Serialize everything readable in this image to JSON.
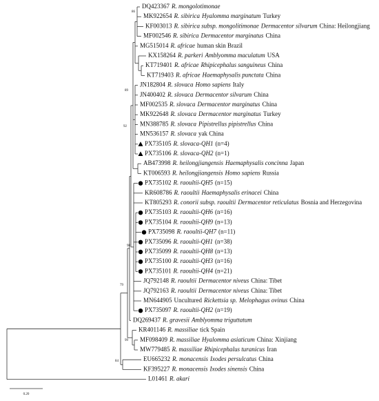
{
  "leaves": [
    {
      "id": "DQ423367",
      "parts": [
        {
          "t": "R. mongolotimonae",
          "i": true
        }
      ]
    },
    {
      "id": "MK922654",
      "parts": [
        {
          "t": "R. sibirica",
          "i": true
        },
        {
          "t": "Hyalomma marginatum",
          "i": true
        },
        {
          "t": "Turkey",
          "i": false
        }
      ]
    },
    {
      "id": "KF003013",
      "parts": [
        {
          "t": "R. sibirica subsp. mongolitimonae",
          "i": true
        },
        {
          "t": "Dermacentor silvarum",
          "i": true
        },
        {
          "t": "China: Heilongjiang",
          "i": false
        }
      ]
    },
    {
      "id": "MF002546",
      "parts": [
        {
          "t": "R. sibirica",
          "i": true
        },
        {
          "t": "Dermacentor marginatus",
          "i": true
        },
        {
          "t": "China",
          "i": false
        }
      ]
    },
    {
      "id": "MG515014",
      "parts": [
        {
          "t": "R. africae",
          "i": true
        },
        {
          "t": "human skin Brazil",
          "i": false
        }
      ]
    },
    {
      "id": "KX158264",
      "parts": [
        {
          "t": "R. parkeri",
          "i": true
        },
        {
          "t": "Amblyomma maculatum",
          "i": true
        },
        {
          "t": "USA",
          "i": false
        }
      ]
    },
    {
      "id": "KT719401",
      "parts": [
        {
          "t": "R. africae",
          "i": true
        },
        {
          "t": "Rhipicephalus sanguineus",
          "i": true
        },
        {
          "t": "China",
          "i": false
        }
      ]
    },
    {
      "id": "KT719403",
      "parts": [
        {
          "t": "R. africae",
          "i": true
        },
        {
          "t": "Haemaphysalis punctata",
          "i": true
        },
        {
          "t": "China",
          "i": false
        }
      ]
    },
    {
      "id": "JN182804",
      "parts": [
        {
          "t": "R. slovaca",
          "i": true
        },
        {
          "t": "Homo sapiens",
          "i": true
        },
        {
          "t": "Italy",
          "i": false
        }
      ]
    },
    {
      "id": "JN400402",
      "parts": [
        {
          "t": "R. slovaca",
          "i": true
        },
        {
          "t": "Dermacentor silvarum",
          "i": true
        },
        {
          "t": "China",
          "i": false
        }
      ]
    },
    {
      "id": "MF002535",
      "parts": [
        {
          "t": "R. slovaca",
          "i": true
        },
        {
          "t": "Dermacentor marginatus",
          "i": true
        },
        {
          "t": "China",
          "i": false
        }
      ]
    },
    {
      "id": "MK922648",
      "parts": [
        {
          "t": "R. slovaca",
          "i": true
        },
        {
          "t": "Dermacentor marginatus",
          "i": true
        },
        {
          "t": "Turkey",
          "i": false
        }
      ]
    },
    {
      "id": "MN388785",
      "parts": [
        {
          "t": "R. slovaca",
          "i": true
        },
        {
          "t": "Pipistrellus pipistrellus",
          "i": true
        },
        {
          "t": "China",
          "i": false
        }
      ]
    },
    {
      "id": "MN536157",
      "parts": [
        {
          "t": "R. slovaca",
          "i": true
        },
        {
          "t": "yak China",
          "i": false
        }
      ]
    },
    {
      "id": "PX735105",
      "marker": "triangle",
      "parts": [
        {
          "t": "R. slovaca-QH1",
          "i": true
        },
        {
          "t": "(n=4)",
          "i": false
        }
      ]
    },
    {
      "id": "PX735106",
      "marker": "triangle",
      "parts": [
        {
          "t": "R. slovaca-QH2",
          "i": true
        },
        {
          "t": "(n=1)",
          "i": false
        }
      ]
    },
    {
      "id": "AB473998",
      "parts": [
        {
          "t": "R. heilongjiangensis",
          "i": true
        },
        {
          "t": "Haemaphysalis concinna",
          "i": true
        },
        {
          "t": "Japan",
          "i": false
        }
      ]
    },
    {
      "id": "KT006593",
      "parts": [
        {
          "t": "R. heilongjiangensis",
          "i": true
        },
        {
          "t": "Homo sapiens",
          "i": true
        },
        {
          "t": "Russia",
          "i": false
        }
      ]
    },
    {
      "id": "PX735102",
      "marker": "circle",
      "parts": [
        {
          "t": "R. raoultii-QH5",
          "i": true
        },
        {
          "t": "(n=15)",
          "i": false
        }
      ]
    },
    {
      "id": "KR608786",
      "parts": [
        {
          "t": "R. raoultii",
          "i": true
        },
        {
          "t": "Haemaphysalis erinacei",
          "i": true
        },
        {
          "t": "China",
          "i": false
        }
      ]
    },
    {
      "id": "KT805293",
      "parts": [
        {
          "t": "R. conorii subsp. raoultii",
          "i": true
        },
        {
          "t": "Dermacentor reticulatus",
          "i": true
        },
        {
          "t": "Bosnia and Herzegovina",
          "i": false
        }
      ]
    },
    {
      "id": "PX735103",
      "marker": "circle",
      "parts": [
        {
          "t": "R. raoultii-QH6",
          "i": true
        },
        {
          "t": "(n=16)",
          "i": false
        }
      ]
    },
    {
      "id": "PX735104",
      "marker": "circle",
      "parts": [
        {
          "t": "R. raoultii-QH9",
          "i": true
        },
        {
          "t": "(n=13)",
          "i": false
        }
      ]
    },
    {
      "id": "PX735098",
      "marker": "circle",
      "parts": [
        {
          "t": "R. raoultii-QH7",
          "i": true
        },
        {
          "t": "(n=11)",
          "i": false
        }
      ]
    },
    {
      "id": "PX735096",
      "marker": "circle",
      "parts": [
        {
          "t": "R. raoultii-QH1",
          "i": true
        },
        {
          "t": "(n=38)",
          "i": false
        }
      ]
    },
    {
      "id": "PX735099",
      "marker": "circle",
      "parts": [
        {
          "t": "R. raoultii-QH8",
          "i": true
        },
        {
          "t": "(n=13)",
          "i": false
        }
      ]
    },
    {
      "id": "PX735100",
      "marker": "circle",
      "parts": [
        {
          "t": "R. raoultii-QH3",
          "i": true
        },
        {
          "t": "(n=16)",
          "i": false
        }
      ]
    },
    {
      "id": "PX735101",
      "marker": "circle",
      "parts": [
        {
          "t": "R. raoultii-QH4",
          "i": true
        },
        {
          "t": "(n=21)",
          "i": false
        }
      ]
    },
    {
      "id": "JQ792148",
      "parts": [
        {
          "t": "R. raoultii",
          "i": true
        },
        {
          "t": "Dermacentor niveus",
          "i": true
        },
        {
          "t": "China: Tibet",
          "i": false
        }
      ]
    },
    {
      "id": "JQ792163",
      "parts": [
        {
          "t": "R. raoultii",
          "i": true
        },
        {
          "t": "Dermacentor niveus",
          "i": true
        },
        {
          "t": "China: Tibet",
          "i": false
        }
      ]
    },
    {
      "id": "MN644905",
      "parts": [
        {
          "t": "Uncultured",
          "i": false
        },
        {
          "t": "Rickettsia sp.",
          "i": true
        },
        {
          "t": "Melophagus ovinus",
          "i": true
        },
        {
          "t": "China",
          "i": false
        }
      ]
    },
    {
      "id": "PX735097",
      "marker": "circle",
      "parts": [
        {
          "t": "R. raoultii-QH2",
          "i": true
        },
        {
          "t": "(n=19)",
          "i": false
        }
      ]
    },
    {
      "id": "DQ269437",
      "parts": [
        {
          "t": "R. gravesii",
          "i": true
        },
        {
          "t": "Amblyomma triguttatum",
          "i": true
        }
      ]
    },
    {
      "id": "KR401146",
      "parts": [
        {
          "t": "R. massiliae",
          "i": true
        },
        {
          "t": "tick Spain",
          "i": false
        }
      ]
    },
    {
      "id": "MF098409",
      "parts": [
        {
          "t": "R. massiliae",
          "i": true
        },
        {
          "t": "Hyalomma asiaticum",
          "i": true
        },
        {
          "t": "China: Xinjiang",
          "i": false
        }
      ]
    },
    {
      "id": "MW779485",
      "parts": [
        {
          "t": "R. massiliae",
          "i": true
        },
        {
          "t": "Rhipicephalus turanicus",
          "i": true
        },
        {
          "t": "Iran",
          "i": false
        }
      ]
    },
    {
      "id": "EU665232",
      "parts": [
        {
          "t": "R. monacensis",
          "i": true
        },
        {
          "t": "Ixodes persulcatus",
          "i": true
        },
        {
          "t": "China",
          "i": false
        }
      ]
    },
    {
      "id": "KF395227",
      "parts": [
        {
          "t": "R. monacensis",
          "i": true
        },
        {
          "t": "Ixodes sinensis",
          "i": true
        },
        {
          "t": "China",
          "i": false
        }
      ]
    },
    {
      "id": "L01461",
      "parts": [
        {
          "t": "R. akari",
          "i": true
        }
      ]
    }
  ],
  "bootstrap": [
    86,
    89,
    92,
    98,
    79,
    99,
    84
  ],
  "scale_bar": "0.20"
}
